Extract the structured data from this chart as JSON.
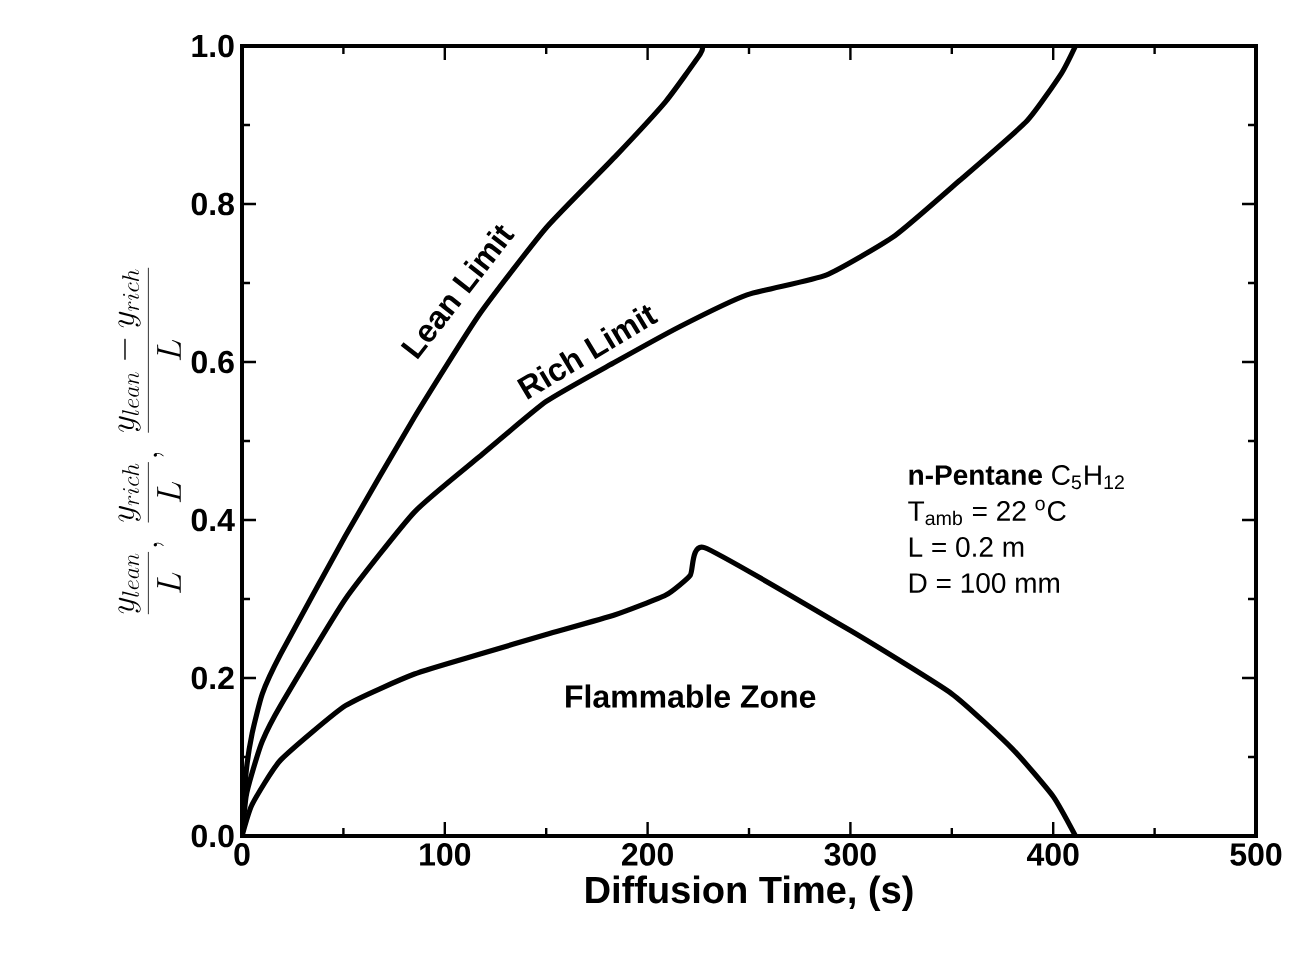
{
  "chart_data": {
    "type": "line",
    "xlabel": "Diffusion Time,  (s)",
    "ylabel": "\\frac{y_{lean}}{L},\\ \\frac{y_{rich}}{L},\\ \\frac{y_{lean}-y_{rich}}{L}",
    "xlim": [
      0,
      500
    ],
    "ylim": [
      0,
      1.0
    ],
    "xticks": [
      0,
      100,
      200,
      300,
      400,
      500
    ],
    "yticks": [
      {
        "value": 0,
        "label": "0.0"
      },
      0.2,
      0.4,
      0.6,
      0.8,
      {
        "value": 1.0,
        "label": "1.0"
      }
    ],
    "series": [
      {
        "name": "Lean Limit",
        "color": "#000000",
        "x": [
          0,
          2,
          5,
          10,
          19,
          51,
          85,
          117,
          150,
          184,
          209,
          226,
          227
        ],
        "values": [
          0,
          0.08,
          0.13,
          0.18,
          0.23,
          0.38,
          0.53,
          0.66,
          0.77,
          0.86,
          0.93,
          0.99,
          1.0
        ]
      },
      {
        "name": "Rich Limit",
        "color": "#000000",
        "x": [
          0,
          2,
          5,
          10,
          19,
          51,
          85,
          117,
          150,
          184,
          216,
          249,
          288,
          322,
          354,
          387,
          404,
          411
        ],
        "values": [
          0,
          0.05,
          0.08,
          0.12,
          0.165,
          0.3,
          0.41,
          0.48,
          0.55,
          0.6,
          0.645,
          0.685,
          0.71,
          0.76,
          0.83,
          0.905,
          0.965,
          1.0
        ]
      },
      {
        "name": "Flammable Zone",
        "color": "#000000",
        "x": [
          0,
          5,
          19,
          51,
          85,
          117,
          150,
          184,
          209,
          221,
          228,
          300,
          350,
          380,
          400,
          411
        ],
        "values": [
          0,
          0.04,
          0.096,
          0.165,
          0.205,
          0.23,
          0.255,
          0.28,
          0.305,
          0.33,
          0.365,
          0.26,
          0.18,
          0.11,
          0.05,
          0
        ]
      }
    ],
    "annotations": [
      "**n-Pentane** C$_{5}$H$_{12}$",
      "T$_{amb}$ = 22 $^{o}$C",
      "L = 0.2 m",
      "D = 100 mm"
    ],
    "line_style": "solid",
    "marker": "none"
  }
}
